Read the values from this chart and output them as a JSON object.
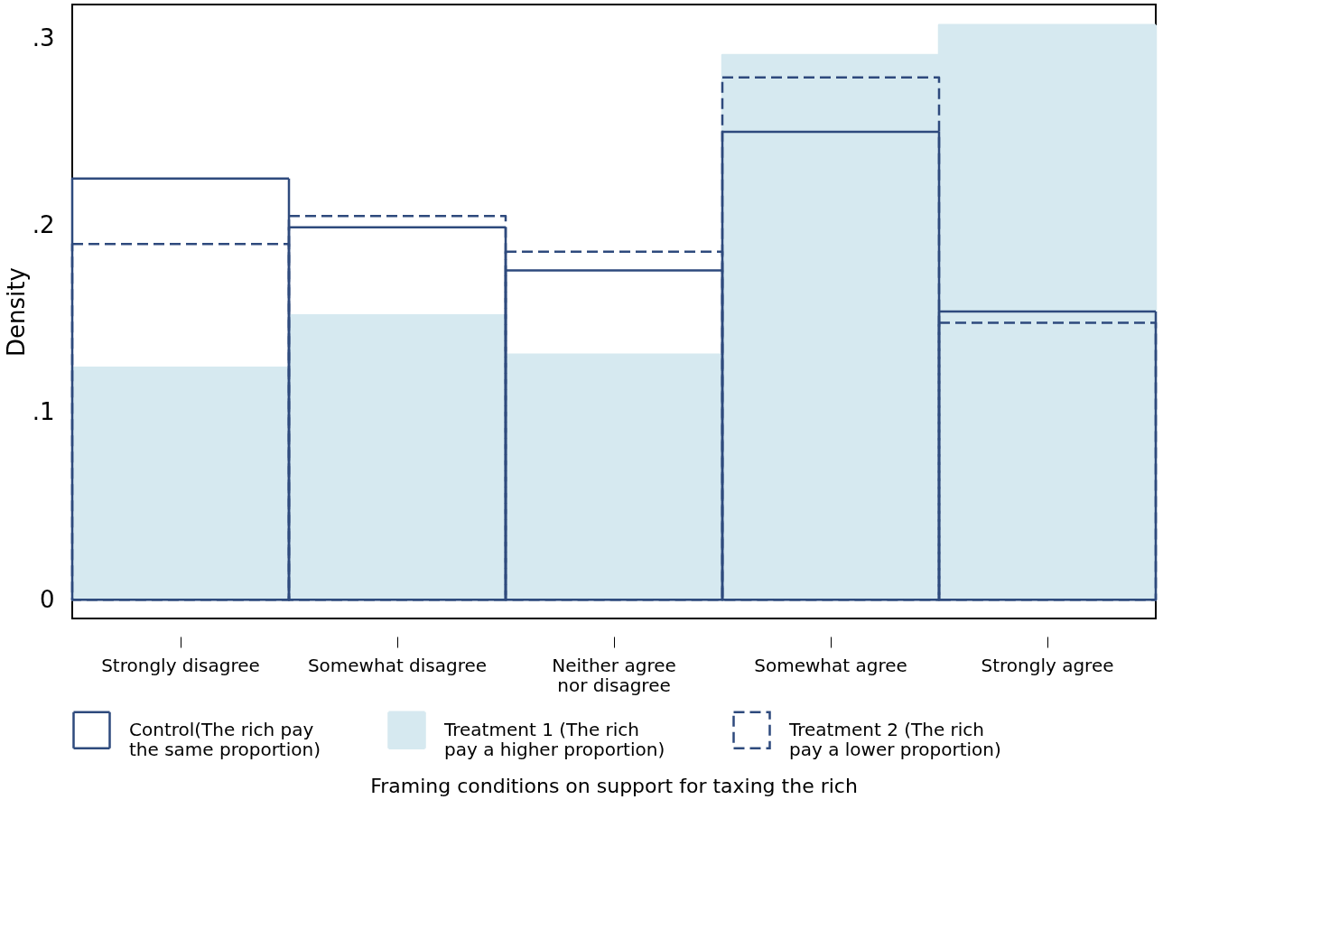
{
  "chart_data": {
    "type": "bar",
    "categories": [
      "Strongly disagree",
      "Somewhat disagree",
      "Neither agree\nnor disagree",
      "Somewhat agree",
      "Strongly agree"
    ],
    "series": [
      {
        "name": "Control(The rich pay\n the same proportion)",
        "color": "#2e4a7d",
        "line_style": "solid",
        "values": [
          0.225,
          0.199,
          0.176,
          0.25,
          0.154
        ]
      },
      {
        "name": "Treatment 1 (The rich\npay a higher proportion)",
        "color": "#d6e9f0",
        "values": [
          0.124,
          0.152,
          0.131,
          0.291,
          0.307
        ]
      },
      {
        "name": "Treatment 2 (The rich\n pay a lower proportion)",
        "color": "#2e4a7d",
        "line_style": "dashed",
        "values": [
          0.19,
          0.205,
          0.186,
          0.279,
          0.148
        ]
      }
    ],
    "ylabel": "Density",
    "xlabel": "Framing conditions on support for taxing the rich",
    "ylim": [
      -0.01,
      0.318
    ],
    "yticks": [
      {
        "value": 0,
        "label": "0"
      },
      {
        "value": 0.1,
        "label": ".1"
      },
      {
        "value": 0.2,
        "label": ".2"
      },
      {
        "value": 0.3,
        "label": ".3"
      }
    ],
    "grid": false,
    "legend": "bottom"
  }
}
